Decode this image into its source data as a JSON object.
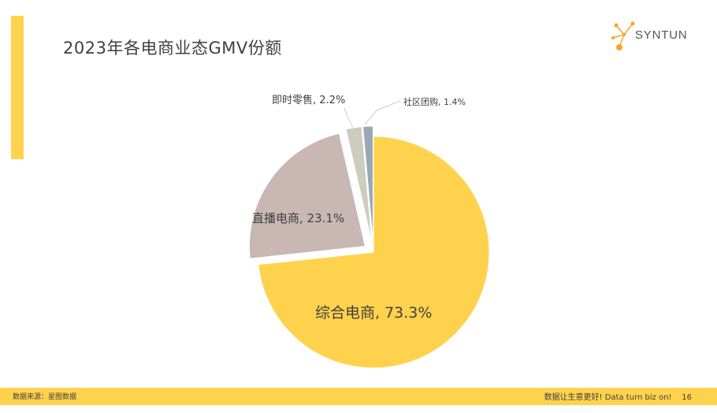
{
  "title": "2023年各电商业态GMV份额",
  "logo": {
    "text": "SYNTUN",
    "icon": "syntun-network-logo-icon",
    "color": "#F5A623"
  },
  "footer": {
    "source": "数据来源：星图数据",
    "slogan": "数据让生意更好! Data turn biz on!",
    "page_number": "16"
  },
  "colors": {
    "accent": "#FFD24D",
    "text": "#404040",
    "footer_bg": "#FFD24D"
  },
  "chart_data": {
    "type": "pie",
    "title": "",
    "series": [
      {
        "label": "综合电商",
        "percent_text": "73.3%",
        "value": 73.3,
        "color": "#FFD24D"
      },
      {
        "label": "直播电商",
        "percent_text": "23.1%",
        "value": 23.1,
        "color": "#C8B7B2"
      },
      {
        "label": "即时零售",
        "percent_text": "2.2%",
        "value": 2.2,
        "color": "#CCCCBF"
      },
      {
        "label": "社区团购",
        "percent_text": "1.4%",
        "value": 1.4,
        "color": "#9AA7B4"
      }
    ],
    "start_angle_deg": 0,
    "direction": "clockwise",
    "exploded": true,
    "legend": "none"
  }
}
